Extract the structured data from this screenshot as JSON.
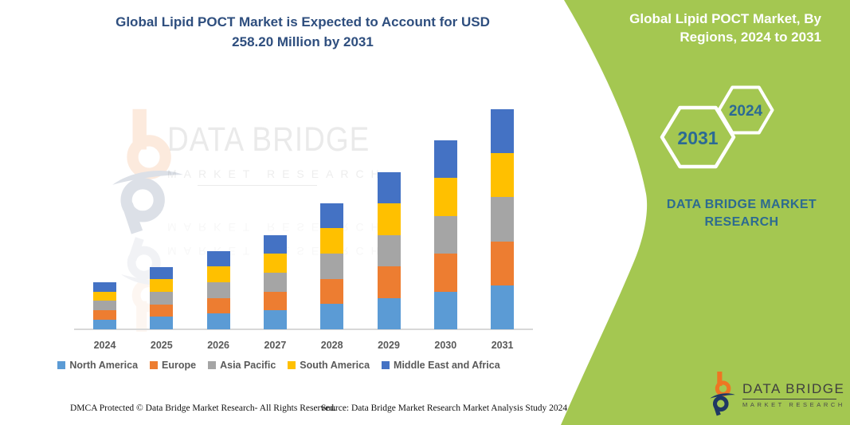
{
  "header": {
    "title_line1": "Global Lipid POCT Market is Expected to Account for USD",
    "title_line2": "258.20 Million by 2031"
  },
  "side_panel": {
    "bg_color": "#A4C751",
    "title_line1": "Global Lipid POCT Market, By",
    "title_line2": "Regions, 2024 to 2031",
    "hexagons": [
      {
        "label": "2031"
      },
      {
        "label": "2024"
      }
    ],
    "hexagon_label_color": "#2B6A94",
    "brand_line1": "DATA BRIDGE MARKET",
    "brand_line2": "RESEARCH",
    "brand_color": "#2D6B90"
  },
  "watermark": {
    "big_text": "DATA BRIDGE",
    "small_text": "MARKET RESEARCH"
  },
  "logo": {
    "name": "DATA BRIDGE",
    "subtitle": "MARKET RESEARCH",
    "orange": "#EE7623",
    "navy": "#1F3864"
  },
  "footer": {
    "left": "DMCA Protected © Data Bridge Market Research-  All Rights Reserved.",
    "right": "Source: Data Bridge Market Research  Market Analysis Study 2024"
  },
  "chart_data": {
    "type": "bar",
    "stacked": true,
    "title": "Global Lipid POCT Market is Expected to Account for USD 258.20 Million by 2031",
    "xlabel": "",
    "ylabel": "",
    "axis_visible": false,
    "grid": false,
    "legend_position": "bottom",
    "unit": "USD Million",
    "categories": [
      "2024",
      "2025",
      "2026",
      "2027",
      "2028",
      "2029",
      "2030",
      "2031"
    ],
    "totals": [
      55.5,
      73.3,
      92.0,
      110.7,
      148.1,
      184.6,
      222.0,
      258.2
    ],
    "highlight_value": "258.20",
    "highlight_year": "2031",
    "series": [
      {
        "name": "North America",
        "color": "#5B9BD5",
        "values": [
          11.1,
          14.66,
          18.4,
          22.14,
          29.62,
          36.92,
          44.4,
          51.64
        ]
      },
      {
        "name": "Europe",
        "color": "#ED7D31",
        "values": [
          11.1,
          14.66,
          18.4,
          22.14,
          29.62,
          36.92,
          44.4,
          51.64
        ]
      },
      {
        "name": "Asia Pacific",
        "color": "#A5A5A5",
        "values": [
          11.1,
          14.66,
          18.4,
          22.14,
          29.62,
          36.92,
          44.4,
          51.64
        ]
      },
      {
        "name": "South America",
        "color": "#FFC000",
        "values": [
          11.1,
          14.66,
          18.4,
          22.14,
          29.62,
          36.92,
          44.4,
          51.64
        ]
      },
      {
        "name": "Middle East and Africa",
        "color": "#4472C4",
        "values": [
          11.1,
          14.66,
          18.4,
          22.14,
          29.62,
          36.92,
          44.4,
          51.64
        ]
      }
    ]
  }
}
